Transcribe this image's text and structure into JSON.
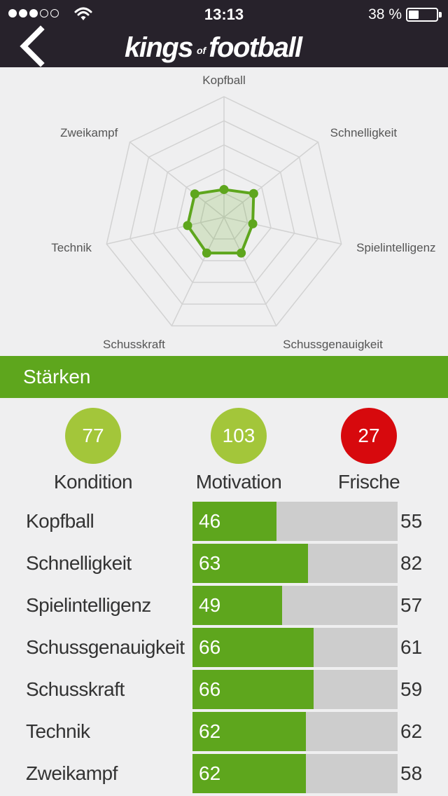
{
  "status_bar": {
    "time": "13:13",
    "battery": "38 %",
    "battery_level": 0.38,
    "signal_bars": 3,
    "signal_total": 5
  },
  "nav": {
    "logo_part1": "kings",
    "logo_of": "of",
    "logo_part2": "football"
  },
  "chart_data": {
    "type": "radar",
    "axes": [
      "Kopfball",
      "Schnelligkeit",
      "Spielintelligenz",
      "Schussgenauigkeit",
      "Schusskraft",
      "Technik",
      "Zweikampf"
    ],
    "values": [
      46,
      63,
      49,
      66,
      66,
      62,
      62
    ],
    "range": [
      0,
      200
    ],
    "rings": 5,
    "colors": {
      "line": "#5ea61d",
      "fill": "#5ea61d",
      "grid": "#d2d2d2"
    }
  },
  "section": {
    "title": "Stärken"
  },
  "metrics": [
    {
      "value": "77",
      "label": "Kondition",
      "color": "#a3c63a"
    },
    {
      "value": "103",
      "label": "Motivation",
      "color": "#a3c63a"
    },
    {
      "value": "27",
      "label": "Frische",
      "color": "#d7090d"
    }
  ],
  "skills": [
    {
      "label": "Kopfball",
      "value": 46,
      "max": 55
    },
    {
      "label": "Schnelligkeit",
      "value": 63,
      "max": 82
    },
    {
      "label": "Spielintelligenz",
      "value": 49,
      "max": 57
    },
    {
      "label": "Schussgenauigkeit",
      "value": 66,
      "max": 61
    },
    {
      "label": "Schusskraft",
      "value": 66,
      "max": 59
    },
    {
      "label": "Technik",
      "value": 62,
      "max": 62
    },
    {
      "label": "Zweikampf",
      "value": 62,
      "max": 58
    }
  ],
  "colors": {
    "accent": "#5ea61d",
    "bar_bg": "#cdcdcd",
    "header_bg": "#27222b"
  }
}
